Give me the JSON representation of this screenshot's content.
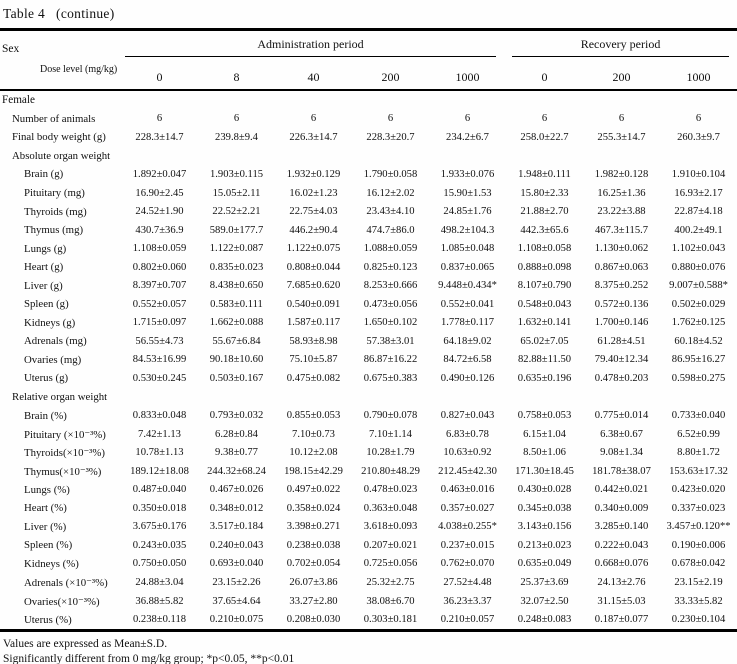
{
  "title": "Table 4   (continue)",
  "header": {
    "sex_label": "Sex",
    "dose_label": "Dose level (mg/kg)",
    "groups": [
      {
        "label": "Administration period",
        "span": 5
      },
      {
        "label": "Recovery period",
        "span": 3
      }
    ],
    "doses": [
      "0",
      "8",
      "40",
      "200",
      "1000",
      "0",
      "200",
      "1000"
    ]
  },
  "rows": [
    {
      "label": "Female",
      "indent": 0
    },
    {
      "label": "Number of animals",
      "indent": 1,
      "values": [
        "6",
        "6",
        "6",
        "6",
        "6",
        "6",
        "6",
        "6"
      ]
    },
    {
      "label": "Final body weight (g)",
      "indent": 1,
      "values": [
        "228.3±14.7",
        "239.8±9.4",
        "226.3±14.7",
        "228.3±20.7",
        "234.2±6.7",
        "258.0±22.7",
        "255.3±14.7",
        "260.3±9.7"
      ]
    },
    {
      "label": "Absolute organ weight",
      "indent": 1
    },
    {
      "label": "Brain (g)",
      "indent": 2,
      "values": [
        "1.892±0.047",
        "1.903±0.115",
        "1.932±0.129",
        "1.790±0.058",
        "1.933±0.076",
        "1.948±0.111",
        "1.982±0.128",
        "1.910±0.104"
      ]
    },
    {
      "label": "Pituitary (mg)",
      "indent": 2,
      "values": [
        "16.90±2.45",
        "15.05±2.11",
        "16.02±1.23",
        "16.12±2.02",
        "15.90±1.53",
        "15.80±2.33",
        "16.25±1.36",
        "16.93±2.17"
      ]
    },
    {
      "label": "Thyroids (mg)",
      "indent": 2,
      "values": [
        "24.52±1.90",
        "22.52±2.21",
        "22.75±4.03",
        "23.43±4.10",
        "24.85±1.76",
        "21.88±2.70",
        "23.22±3.88",
        "22.87±4.18"
      ]
    },
    {
      "label": "Thymus (mg)",
      "indent": 2,
      "values": [
        "430.7±36.9",
        "589.0±177.7",
        "446.2±90.4",
        "474.7±86.0",
        "498.2±104.3",
        "442.3±65.6",
        "467.3±115.7",
        "400.2±49.1"
      ]
    },
    {
      "label": "Lungs (g)",
      "indent": 2,
      "values": [
        "1.108±0.059",
        "1.122±0.087",
        "1.122±0.075",
        "1.088±0.059",
        "1.085±0.048",
        "1.108±0.058",
        "1.130±0.062",
        "1.102±0.043"
      ]
    },
    {
      "label": "Heart (g)",
      "indent": 2,
      "values": [
        "0.802±0.060",
        "0.835±0.023",
        "0.808±0.044",
        "0.825±0.123",
        "0.837±0.065",
        "0.888±0.098",
        "0.867±0.063",
        "0.880±0.076"
      ]
    },
    {
      "label": "Liver (g)",
      "indent": 2,
      "values": [
        "8.397±0.707",
        "8.438±0.650",
        "7.685±0.620",
        "8.253±0.666",
        "9.448±0.434*",
        "8.107±0.790",
        "8.375±0.252",
        "9.007±0.588*"
      ]
    },
    {
      "label": "Spleen (g)",
      "indent": 2,
      "values": [
        "0.552±0.057",
        "0.583±0.111",
        "0.540±0.091",
        "0.473±0.056",
        "0.552±0.041",
        "0.548±0.043",
        "0.572±0.136",
        "0.502±0.029"
      ]
    },
    {
      "label": "Kidneys (g)",
      "indent": 2,
      "values": [
        "1.715±0.097",
        "1.662±0.088",
        "1.587±0.117",
        "1.650±0.102",
        "1.778±0.117",
        "1.632±0.141",
        "1.700±0.146",
        "1.762±0.125"
      ]
    },
    {
      "label": "Adrenals (mg)",
      "indent": 2,
      "values": [
        "56.55±4.73",
        "55.67±6.84",
        "58.93±8.98",
        "57.38±3.01",
        "64.18±9.02",
        "65.02±7.05",
        "61.28±4.51",
        "60.18±4.52"
      ]
    },
    {
      "label": "Ovaries (mg)",
      "indent": 2,
      "values": [
        "84.53±16.99",
        "90.18±10.60",
        "75.10±5.87",
        "86.87±16.22",
        "84.72±6.58",
        "82.88±11.50",
        "79.40±12.34",
        "86.95±16.27"
      ]
    },
    {
      "label": "Uterus (g)",
      "indent": 2,
      "values": [
        "0.530±0.245",
        "0.503±0.167",
        "0.475±0.082",
        "0.675±0.383",
        "0.490±0.126",
        "0.635±0.196",
        "0.478±0.203",
        "0.598±0.275"
      ]
    },
    {
      "label": "Relative organ weight",
      "indent": 1
    },
    {
      "label": "Brain (%)",
      "indent": 2,
      "values": [
        "0.833±0.048",
        "0.793±0.032",
        "0.855±0.053",
        "0.790±0.078",
        "0.827±0.043",
        "0.758±0.053",
        "0.775±0.014",
        "0.733±0.040"
      ]
    },
    {
      "label": "Pituitary (×10⁻³%)",
      "indent": 2,
      "values": [
        "7.42±1.13",
        "6.28±0.84",
        "7.10±0.73",
        "7.10±1.14",
        "6.83±0.78",
        "6.15±1.04",
        "6.38±0.67",
        "6.52±0.99"
      ]
    },
    {
      "label": "Thyroids(×10⁻³%)",
      "indent": 2,
      "values": [
        "10.78±1.13",
        "9.38±0.77",
        "10.12±2.08",
        "10.28±1.79",
        "10.63±0.92",
        "8.50±1.06",
        "9.08±1.34",
        "8.80±1.72"
      ]
    },
    {
      "label": "Thymus(×10⁻³%)",
      "indent": 2,
      "values": [
        "189.12±18.08",
        "244.32±68.24",
        "198.15±42.29",
        "210.80±48.29",
        "212.45±42.30",
        "171.30±18.45",
        "181.78±38.07",
        "153.63±17.32"
      ]
    },
    {
      "label": "Lungs (%)",
      "indent": 2,
      "values": [
        "0.487±0.040",
        "0.467±0.026",
        "0.497±0.022",
        "0.478±0.023",
        "0.463±0.016",
        "0.430±0.028",
        "0.442±0.021",
        "0.423±0.020"
      ]
    },
    {
      "label": "Heart (%)",
      "indent": 2,
      "values": [
        "0.350±0.018",
        "0.348±0.012",
        "0.358±0.024",
        "0.363±0.048",
        "0.357±0.027",
        "0.345±0.038",
        "0.340±0.009",
        "0.337±0.023"
      ]
    },
    {
      "label": "Liver (%)",
      "indent": 2,
      "values": [
        "3.675±0.176",
        "3.517±0.184",
        "3.398±0.271",
        "3.618±0.093",
        "4.038±0.255*",
        "3.143±0.156",
        "3.285±0.140",
        "3.457±0.120**"
      ]
    },
    {
      "label": "Spleen (%)",
      "indent": 2,
      "values": [
        "0.243±0.035",
        "0.240±0.043",
        "0.238±0.038",
        "0.207±0.021",
        "0.237±0.015",
        "0.213±0.023",
        "0.222±0.043",
        "0.190±0.006"
      ]
    },
    {
      "label": "Kidneys (%)",
      "indent": 2,
      "values": [
        "0.750±0.050",
        "0.693±0.040",
        "0.702±0.054",
        "0.725±0.056",
        "0.762±0.070",
        "0.635±0.049",
        "0.668±0.076",
        "0.678±0.042"
      ]
    },
    {
      "label": "Adrenals (×10⁻³%)",
      "indent": 2,
      "values": [
        "24.88±3.04",
        "23.15±2.26",
        "26.07±3.86",
        "25.32±2.75",
        "27.52±4.48",
        "25.37±3.69",
        "24.13±2.76",
        "23.15±2.19"
      ]
    },
    {
      "label": "Ovaries(×10⁻³%)",
      "indent": 2,
      "values": [
        "36.88±5.82",
        "37.65±4.64",
        "33.27±2.80",
        "38.08±6.70",
        "36.23±3.37",
        "32.07±2.50",
        "31.15±5.03",
        "33.33±5.82"
      ]
    },
    {
      "label": "Uterus (%)",
      "indent": 2,
      "values": [
        "0.238±0.118",
        "0.210±0.075",
        "0.208±0.030",
        "0.303±0.181",
        "0.210±0.057",
        "0.248±0.083",
        "0.187±0.077",
        "0.230±0.104"
      ]
    }
  ],
  "footer": {
    "line1": "Values are expressed as Mean±S.D.",
    "line2": "Significantly different from 0 mg/kg group; *p<0.05, **p<0.01"
  }
}
